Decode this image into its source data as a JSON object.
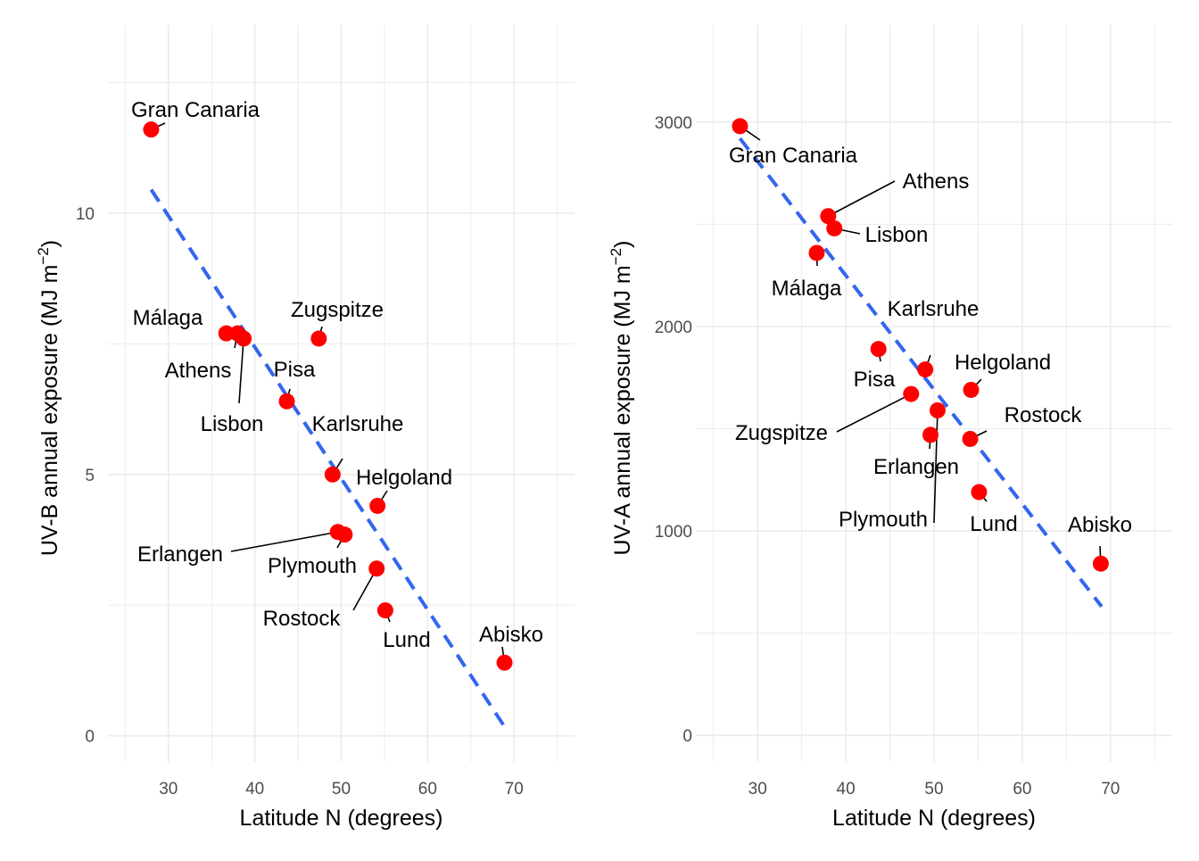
{
  "colors": {
    "point": "#ff0000",
    "trend": "#3366ee",
    "grid": "#ebebeb"
  },
  "chart_data": [
    {
      "type": "scatter",
      "xlabel": "Latitude N (degrees)",
      "ylabel": "UV-B annual exposure (MJ m",
      "ylabel_sup": "−2",
      "ylabel_close": ")",
      "xlim": [
        23,
        77
      ],
      "ylim": [
        -0.5,
        13.6
      ],
      "xticks": [
        30,
        40,
        50,
        60,
        70
      ],
      "yticks": [
        0,
        5,
        10
      ],
      "grid": true,
      "trendline": {
        "x": [
          28,
          69
        ],
        "y": [
          10.45,
          0.15
        ]
      },
      "points": [
        {
          "label": "Gran Canaria",
          "x": 28.0,
          "y": 11.6
        },
        {
          "label": "Málaga",
          "x": 36.7,
          "y": 7.7
        },
        {
          "label": "Athens",
          "x": 38.0,
          "y": 7.7
        },
        {
          "label": "Lisbon",
          "x": 38.7,
          "y": 7.6
        },
        {
          "label": "Zugspitze",
          "x": 47.4,
          "y": 7.6
        },
        {
          "label": "Pisa",
          "x": 43.7,
          "y": 6.4
        },
        {
          "label": "Karlsruhe",
          "x": 49.0,
          "y": 5.0
        },
        {
          "label": "Helgoland",
          "x": 54.2,
          "y": 4.4
        },
        {
          "label": "Erlangen",
          "x": 49.6,
          "y": 3.9
        },
        {
          "label": "Plymouth",
          "x": 50.4,
          "y": 3.85
        },
        {
          "label": "Rostock",
          "x": 54.1,
          "y": 3.2
        },
        {
          "label": "Lund",
          "x": 55.1,
          "y": 2.4
        },
        {
          "label": "Abisko",
          "x": 68.9,
          "y": 1.4
        }
      ]
    },
    {
      "type": "scatter",
      "xlabel": "Latitude N (degrees)",
      "ylabel": "UV-A annual exposure (MJ m",
      "ylabel_sup": "−2",
      "ylabel_close": ")",
      "xlim": [
        23,
        77
      ],
      "ylim": [
        -130,
        3475
      ],
      "xticks": [
        30,
        40,
        50,
        60,
        70
      ],
      "yticks": [
        0,
        1000,
        2000,
        3000
      ],
      "grid": true,
      "trendline": {
        "x": [
          28,
          69
        ],
        "y": [
          2920,
          630
        ]
      },
      "points": [
        {
          "label": "Gran Canaria",
          "x": 28.0,
          "y": 2980
        },
        {
          "label": "Athens",
          "x": 38.0,
          "y": 2540
        },
        {
          "label": "Lisbon",
          "x": 38.7,
          "y": 2480
        },
        {
          "label": "Málaga",
          "x": 36.7,
          "y": 2360
        },
        {
          "label": "Pisa",
          "x": 43.7,
          "y": 1890
        },
        {
          "label": "Karlsruhe",
          "x": 49.0,
          "y": 1790
        },
        {
          "label": "Helgoland",
          "x": 54.2,
          "y": 1690
        },
        {
          "label": "Zugspitze",
          "x": 47.4,
          "y": 1670
        },
        {
          "label": "Erlangen",
          "x": 49.6,
          "y": 1470
        },
        {
          "label": "Plymouth",
          "x": 50.4,
          "y": 1590
        },
        {
          "label": "Rostock",
          "x": 54.1,
          "y": 1450
        },
        {
          "label": "Lund",
          "x": 55.1,
          "y": 1190
        },
        {
          "label": "Abisko",
          "x": 68.9,
          "y": 840
        }
      ]
    }
  ]
}
